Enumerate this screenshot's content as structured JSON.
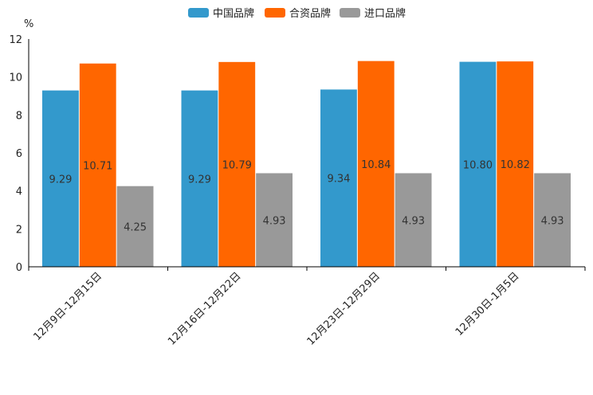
{
  "chart_data": {
    "type": "bar",
    "title": "",
    "xlabel": "",
    "ylabel": "%",
    "ylim": [
      0,
      12
    ],
    "yticks": [
      "0",
      "2",
      "4",
      "6",
      "8",
      "10",
      "12"
    ],
    "categories": [
      "12月9日-12月15日",
      "12月16日-12月22日",
      "12月23日-12月29日",
      "12月30日-1月5日"
    ],
    "series": [
      {
        "name": "中国品牌",
        "color": "#3399cc",
        "values": [
          9.29,
          9.29,
          9.34,
          10.8
        ],
        "labels": [
          "9.29",
          "9.29",
          "9.34",
          "10.80"
        ]
      },
      {
        "name": "合资品牌",
        "color": "#ff6600",
        "values": [
          10.71,
          10.79,
          10.84,
          10.82
        ],
        "labels": [
          "10.71",
          "10.79",
          "10.84",
          "10.82"
        ]
      },
      {
        "name": "进口品牌",
        "color": "#999999",
        "values": [
          4.25,
          4.93,
          4.93,
          4.93
        ],
        "labels": [
          "4.25",
          "4.93",
          "4.93",
          "4.93"
        ]
      }
    ],
    "legend_position": "top-center",
    "grid": false
  }
}
